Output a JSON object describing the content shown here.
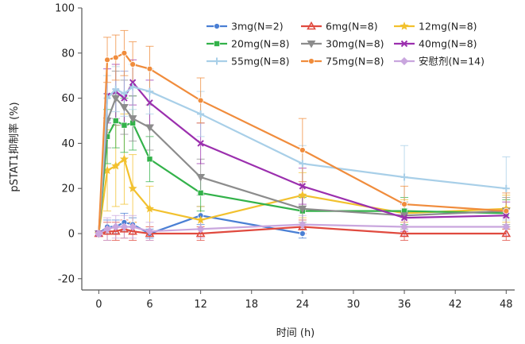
{
  "chart_data": {
    "type": "line",
    "title": "",
    "xlabel": "时间 (h)",
    "ylabel": "pSTAT1抑制率 (%)",
    "xlim": [
      -2,
      49
    ],
    "ylim": [
      -25,
      100
    ],
    "xticks": [
      0,
      6,
      12,
      18,
      24,
      30,
      36,
      42,
      48
    ],
    "yticks": [
      -20,
      0,
      20,
      40,
      60,
      80,
      100
    ],
    "legend_position": "top-right",
    "grid": false,
    "series": [
      {
        "name": "3mg(N=2)",
        "color": "#4a7fd4",
        "marker": "circle",
        "x": [
          0,
          1,
          2,
          3,
          4,
          6,
          12,
          24
        ],
        "y": [
          0,
          3,
          3,
          5,
          4,
          0,
          8,
          0
        ],
        "err": [
          0,
          3,
          3,
          4,
          3,
          2,
          4,
          2
        ]
      },
      {
        "name": "6mg(N=8)",
        "color": "#e04a3f",
        "marker": "triangle",
        "x": [
          0,
          1,
          2,
          3,
          4,
          6,
          12,
          24,
          36,
          48
        ],
        "y": [
          0,
          1,
          1,
          2,
          1,
          0,
          0,
          3,
          0,
          0
        ],
        "err": [
          0,
          4,
          4,
          4,
          4,
          3,
          3,
          3,
          3,
          3
        ]
      },
      {
        "name": "12mg(N=8)",
        "color": "#f2c12e",
        "marker": "star",
        "x": [
          0,
          1,
          2,
          3,
          4,
          6,
          12,
          24,
          36,
          48
        ],
        "y": [
          0,
          28,
          30,
          33,
          20,
          11,
          6,
          17,
          9,
          11
        ],
        "err": [
          0,
          18,
          18,
          20,
          15,
          10,
          6,
          10,
          6,
          6
        ]
      },
      {
        "name": "20mg(N=8)",
        "color": "#33b24a",
        "marker": "square",
        "x": [
          0,
          1,
          2,
          3,
          4,
          6,
          12,
          24,
          36,
          48
        ],
        "y": [
          0,
          43,
          50,
          48,
          49,
          33,
          18,
          10,
          10,
          9
        ],
        "err": [
          0,
          12,
          12,
          12,
          12,
          10,
          8,
          6,
          6,
          6
        ]
      },
      {
        "name": "30mg(N=8)",
        "color": "#8c8c8c",
        "marker": "triangle-down",
        "x": [
          0,
          1,
          2,
          3,
          4,
          6,
          12,
          24,
          36,
          48
        ],
        "y": [
          0,
          50,
          60,
          56,
          51,
          47,
          25,
          11,
          8,
          10
        ],
        "err": [
          0,
          12,
          12,
          12,
          10,
          10,
          8,
          6,
          6,
          6
        ]
      },
      {
        "name": "40mg(N=8)",
        "color": "#9b2fae",
        "marker": "x",
        "x": [
          0,
          1,
          2,
          3,
          4,
          6,
          12,
          24,
          36,
          48
        ],
        "y": [
          0,
          61,
          63,
          60,
          67,
          58,
          40,
          21,
          7,
          8
        ],
        "err": [
          0,
          12,
          12,
          12,
          10,
          10,
          9,
          8,
          6,
          6
        ]
      },
      {
        "name": "55mg(N=8)",
        "color": "#a8cfe8",
        "marker": "plus",
        "x": [
          0,
          1,
          2,
          3,
          4,
          6,
          12,
          24,
          36,
          48
        ],
        "y": [
          0,
          60,
          64,
          62,
          65,
          63,
          53,
          31,
          25,
          20
        ],
        "err": [
          0,
          10,
          10,
          10,
          10,
          10,
          10,
          8,
          14,
          14
        ]
      },
      {
        "name": "75mg(N=8)",
        "color": "#f08c3c",
        "marker": "circle",
        "x": [
          0,
          1,
          2,
          3,
          4,
          6,
          12,
          24,
          36,
          48
        ],
        "y": [
          0,
          77,
          78,
          80,
          75,
          73,
          59,
          37,
          13,
          10
        ],
        "err": [
          0,
          10,
          10,
          10,
          10,
          10,
          10,
          14,
          8,
          8
        ]
      },
      {
        "name": "安慰剂(N=14)",
        "color": "#c9a6de",
        "marker": "diamond",
        "x": [
          0,
          1,
          2,
          3,
          4,
          6,
          12,
          24,
          36,
          48
        ],
        "y": [
          0,
          2,
          3,
          3,
          3,
          1,
          2,
          4,
          3,
          3
        ],
        "err": [
          0,
          5,
          5,
          5,
          5,
          4,
          4,
          4,
          4,
          4
        ]
      }
    ]
  }
}
